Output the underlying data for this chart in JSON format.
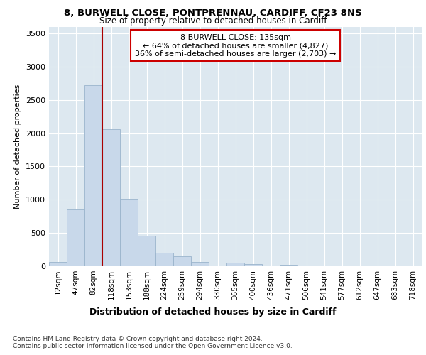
{
  "title_line1": "8, BURWELL CLOSE, PONTPRENNAU, CARDIFF, CF23 8NS",
  "title_line2": "Size of property relative to detached houses in Cardiff",
  "xlabel": "Distribution of detached houses by size in Cardiff",
  "ylabel": "Number of detached properties",
  "bar_labels": [
    "12sqm",
    "47sqm",
    "82sqm",
    "118sqm",
    "153sqm",
    "188sqm",
    "224sqm",
    "259sqm",
    "294sqm",
    "330sqm",
    "365sqm",
    "400sqm",
    "436sqm",
    "471sqm",
    "506sqm",
    "541sqm",
    "577sqm",
    "612sqm",
    "647sqm",
    "683sqm",
    "718sqm"
  ],
  "bar_values": [
    65,
    850,
    2720,
    2060,
    1010,
    455,
    200,
    150,
    65,
    0,
    55,
    30,
    0,
    20,
    0,
    0,
    0,
    0,
    0,
    0,
    0
  ],
  "bar_color": "#c8d8ea",
  "bar_edgecolor": "#9ab4cc",
  "vline_color": "#aa0000",
  "annotation_text": "8 BURWELL CLOSE: 135sqm\n← 64% of detached houses are smaller (4,827)\n36% of semi-detached houses are larger (2,703) →",
  "annotation_box_facecolor": "#ffffff",
  "annotation_box_edgecolor": "#cc0000",
  "ylim": [
    0,
    3600
  ],
  "yticks": [
    0,
    500,
    1000,
    1500,
    2000,
    2500,
    3000,
    3500
  ],
  "fig_bg_color": "#ffffff",
  "plot_bg_color": "#dde8f0",
  "grid_color": "#ffffff",
  "footnote": "Contains HM Land Registry data © Crown copyright and database right 2024.\nContains public sector information licensed under the Open Government Licence v3.0."
}
